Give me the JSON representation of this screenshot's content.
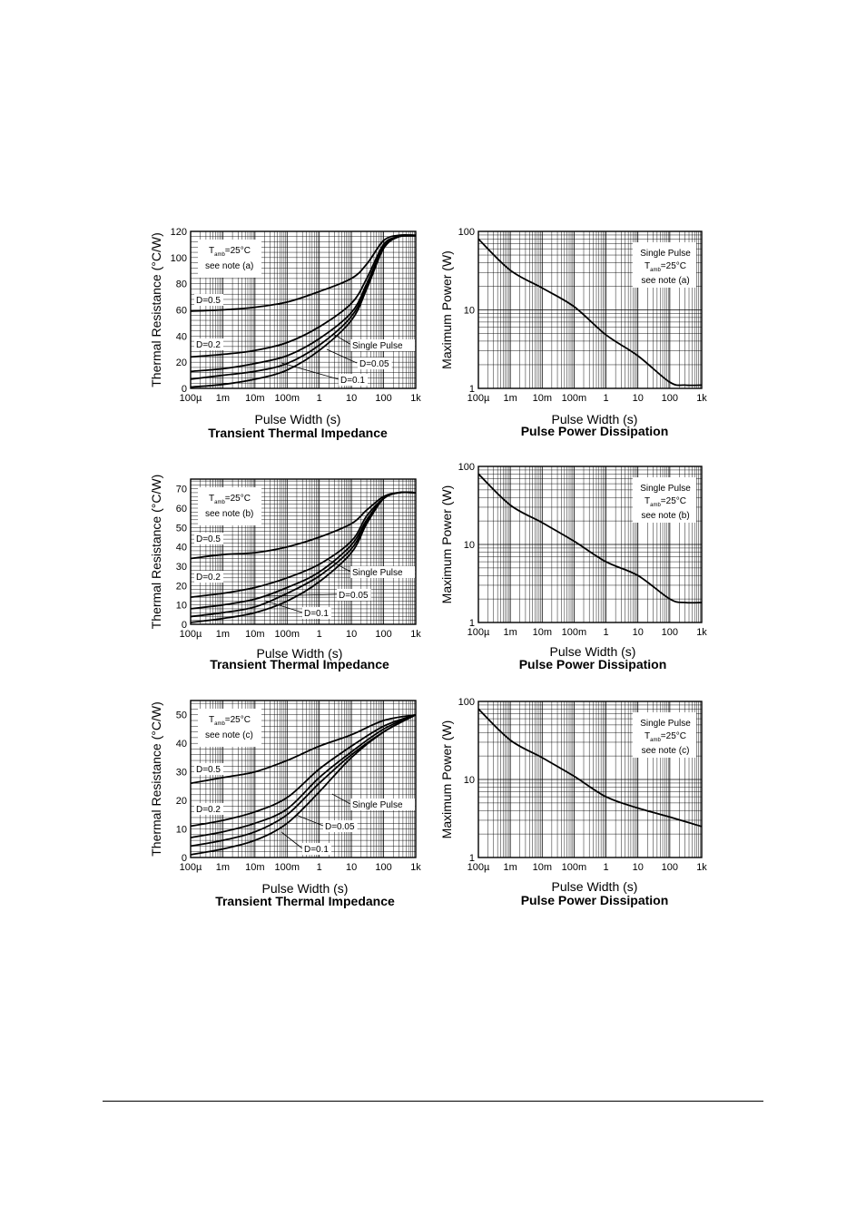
{
  "chart_data": [
    {
      "type": "line",
      "title": "Transient Thermal Impedance",
      "xlabel": "Pulse Width (s)",
      "ylabel": "Thermal Resistance (°C/W)",
      "x_scale": "log",
      "xlim": [
        0.0001,
        1000
      ],
      "ylim": [
        0,
        120
      ],
      "x_tick_labels": [
        "100µ",
        "1m",
        "10m",
        "100m",
        "1",
        "10",
        "100",
        "1k"
      ],
      "y_ticks": [
        0,
        20,
        40,
        60,
        80,
        100,
        120
      ],
      "grid": true,
      "annotation": {
        "t_line": "T",
        "t_sub": "amb",
        "t_rest": "=25°C",
        "note": "see note (a)"
      },
      "series": [
        {
          "name": "D=0.5",
          "x": [
            0.0001,
            0.001,
            0.01,
            0.1,
            1,
            10,
            30,
            100,
            300,
            1000
          ],
          "y": [
            59,
            60,
            62,
            66,
            74,
            84,
            95,
            113,
            117,
            117
          ]
        },
        {
          "name": "D=0.2",
          "x": [
            0.0001,
            0.001,
            0.01,
            0.1,
            1,
            10,
            30,
            100,
            300,
            1000
          ],
          "y": [
            24,
            26,
            29,
            35,
            47,
            65,
            84,
            110,
            116,
            117
          ]
        },
        {
          "name": "D=0.1",
          "x": [
            0.0001,
            0.001,
            0.01,
            0.1,
            1,
            10,
            30,
            100,
            300,
            1000
          ],
          "y": [
            13,
            15,
            19,
            25,
            38,
            58,
            80,
            108,
            116,
            117
          ]
        },
        {
          "name": "D=0.05",
          "x": [
            0.0001,
            0.001,
            0.01,
            0.1,
            1,
            10,
            30,
            100,
            300,
            1000
          ],
          "y": [
            7,
            10,
            13,
            19,
            33,
            55,
            78,
            107,
            116,
            117
          ]
        },
        {
          "name": "Single Pulse",
          "x": [
            0.0001,
            0.001,
            0.01,
            0.1,
            1,
            10,
            30,
            100,
            300,
            1000
          ],
          "y": [
            1,
            3,
            7,
            14,
            29,
            52,
            76,
            107,
            116,
            117
          ]
        }
      ]
    },
    {
      "type": "line",
      "title": "Pulse Power Dissipation",
      "xlabel": "Pulse Width (s)",
      "ylabel": "Maximum Power (W)",
      "x_scale": "log",
      "y_scale": "log",
      "xlim": [
        0.0001,
        1000
      ],
      "ylim": [
        1,
        100
      ],
      "x_tick_labels": [
        "100µ",
        "1m",
        "10m",
        "100m",
        "1",
        "10",
        "100",
        "1k"
      ],
      "y_tick_labels": [
        "1",
        "10",
        "100"
      ],
      "grid": true,
      "annotation": {
        "top": "Single Pulse",
        "t_line": "T",
        "t_sub": "amb",
        "t_rest": "=25°C",
        "note": "see note (a)"
      },
      "series": [
        {
          "name": "Single Pulse",
          "x": [
            0.0001,
            0.001,
            0.01,
            0.1,
            1,
            10,
            100,
            300,
            1000
          ],
          "y": [
            80,
            32,
            19,
            11,
            4.8,
            2.6,
            1.2,
            1.1,
            1.1
          ]
        }
      ]
    },
    {
      "type": "line",
      "title": "Transient Thermal Impedance",
      "xlabel": "Pulse Width (s)",
      "ylabel": "Thermal Resistance (°C/W)",
      "x_scale": "log",
      "xlim": [
        0.0001,
        1000
      ],
      "ylim": [
        0,
        75
      ],
      "x_tick_labels": [
        "100µ",
        "1m",
        "10m",
        "100m",
        "1",
        "10",
        "100",
        "1k"
      ],
      "y_ticks": [
        0,
        10,
        20,
        30,
        40,
        50,
        60,
        70
      ],
      "grid": true,
      "annotation": {
        "t_line": "T",
        "t_sub": "amb",
        "t_rest": "=25°C",
        "note": "see note (b)"
      },
      "series": [
        {
          "name": "D=0.5",
          "x": [
            0.0001,
            0.001,
            0.01,
            0.1,
            1,
            10,
            30,
            100,
            300,
            1000
          ],
          "y": [
            34,
            36,
            37,
            40,
            45,
            52,
            59,
            66,
            68,
            68
          ]
        },
        {
          "name": "D=0.2",
          "x": [
            0.0001,
            0.001,
            0.01,
            0.1,
            1,
            10,
            30,
            100,
            300,
            1000
          ],
          "y": [
            14,
            16,
            19,
            24,
            31,
            43,
            56,
            65,
            68,
            68
          ]
        },
        {
          "name": "D=0.1",
          "x": [
            0.0001,
            0.001,
            0.01,
            0.1,
            1,
            10,
            30,
            100,
            300,
            1000
          ],
          "y": [
            8,
            10,
            13,
            19,
            27,
            41,
            54,
            65,
            68,
            68
          ]
        },
        {
          "name": "D=0.05",
          "x": [
            0.0001,
            0.001,
            0.01,
            0.1,
            1,
            10,
            30,
            100,
            300,
            1000
          ],
          "y": [
            4,
            6,
            9,
            16,
            25,
            39,
            53,
            65,
            68,
            68
          ]
        },
        {
          "name": "Single Pulse",
          "x": [
            0.0001,
            0.001,
            0.01,
            0.1,
            1,
            10,
            30,
            100,
            300,
            1000
          ],
          "y": [
            1,
            3,
            6,
            12,
            22,
            37,
            52,
            65,
            68,
            68
          ]
        }
      ]
    },
    {
      "type": "line",
      "title": "Pulse Power Dissipation",
      "xlabel": "Pulse Width (s)",
      "ylabel": "Maximum Power (W)",
      "x_scale": "log",
      "y_scale": "log",
      "xlim": [
        0.0001,
        1000
      ],
      "ylim": [
        1,
        100
      ],
      "x_tick_labels": [
        "100µ",
        "1m",
        "10m",
        "100m",
        "1",
        "10",
        "100",
        "1k"
      ],
      "y_tick_labels": [
        "1",
        "10",
        "100"
      ],
      "grid": true,
      "annotation": {
        "top": "Single Pulse",
        "t_line": "T",
        "t_sub": "amb",
        "t_rest": "=25°C",
        "note": "see note (b)"
      },
      "series": [
        {
          "name": "Single Pulse",
          "x": [
            0.0001,
            0.001,
            0.01,
            0.1,
            1,
            10,
            100,
            300,
            1000
          ],
          "y": [
            80,
            32,
            19,
            11,
            6,
            4,
            2,
            1.8,
            1.8
          ]
        }
      ]
    },
    {
      "type": "line",
      "title": "Transient Thermal Impedance",
      "xlabel": "Pulse Width (s)",
      "ylabel": "Thermal Resistance (°C/W)",
      "x_scale": "log",
      "xlim": [
        0.0001,
        1000
      ],
      "ylim": [
        0,
        55
      ],
      "x_tick_labels": [
        "100µ",
        "1m",
        "10m",
        "100m",
        "1",
        "10",
        "100",
        "1k"
      ],
      "y_ticks": [
        0,
        10,
        20,
        30,
        40,
        50
      ],
      "grid": true,
      "annotation": {
        "t_line": "T",
        "t_sub": "amb",
        "t_rest": "=25°C",
        "note": "see note (c)"
      },
      "series": [
        {
          "name": "D=0.5",
          "x": [
            0.0001,
            0.001,
            0.01,
            0.1,
            1,
            10,
            100,
            1000
          ],
          "y": [
            26,
            28,
            30,
            34,
            39,
            43,
            48,
            50
          ]
        },
        {
          "name": "D=0.2",
          "x": [
            0.0001,
            0.001,
            0.01,
            0.1,
            1,
            10,
            100,
            1000
          ],
          "y": [
            11,
            13,
            16,
            21,
            31,
            39,
            46,
            50
          ]
        },
        {
          "name": "D=0.1",
          "x": [
            0.0001,
            0.001,
            0.01,
            0.1,
            1,
            10,
            100,
            1000
          ],
          "y": [
            7,
            9,
            12,
            17,
            28,
            37,
            45,
            50
          ]
        },
        {
          "name": "D=0.05",
          "x": [
            0.0001,
            0.001,
            0.01,
            0.1,
            1,
            10,
            100,
            1000
          ],
          "y": [
            4,
            6,
            9,
            15,
            26,
            36,
            44,
            50
          ]
        },
        {
          "name": "Single Pulse",
          "x": [
            0.0001,
            0.001,
            0.01,
            0.1,
            1,
            10,
            100,
            1000
          ],
          "y": [
            1,
            3,
            6,
            12,
            23,
            35,
            44,
            50
          ]
        }
      ]
    },
    {
      "type": "line",
      "title": "Pulse Power Dissipation",
      "xlabel": "Pulse Width (s)",
      "ylabel": "Maximum Power (W)",
      "x_scale": "log",
      "y_scale": "log",
      "xlim": [
        0.0001,
        1000
      ],
      "ylim": [
        1,
        100
      ],
      "x_tick_labels": [
        "100µ",
        "1m",
        "10m",
        "100m",
        "1",
        "10",
        "100",
        "1k"
      ],
      "y_tick_labels": [
        "1",
        "10",
        "100"
      ],
      "grid": true,
      "annotation": {
        "top": "Single Pulse",
        "t_line": "T",
        "t_sub": "amb",
        "t_rest": "=25°C",
        "note": "see note (c)"
      },
      "series": [
        {
          "name": "Single Pulse",
          "x": [
            0.0001,
            0.001,
            0.01,
            0.1,
            1,
            10,
            100,
            1000
          ],
          "y": [
            80,
            32,
            19,
            11,
            6,
            4.3,
            3.3,
            2.5
          ]
        }
      ]
    }
  ]
}
